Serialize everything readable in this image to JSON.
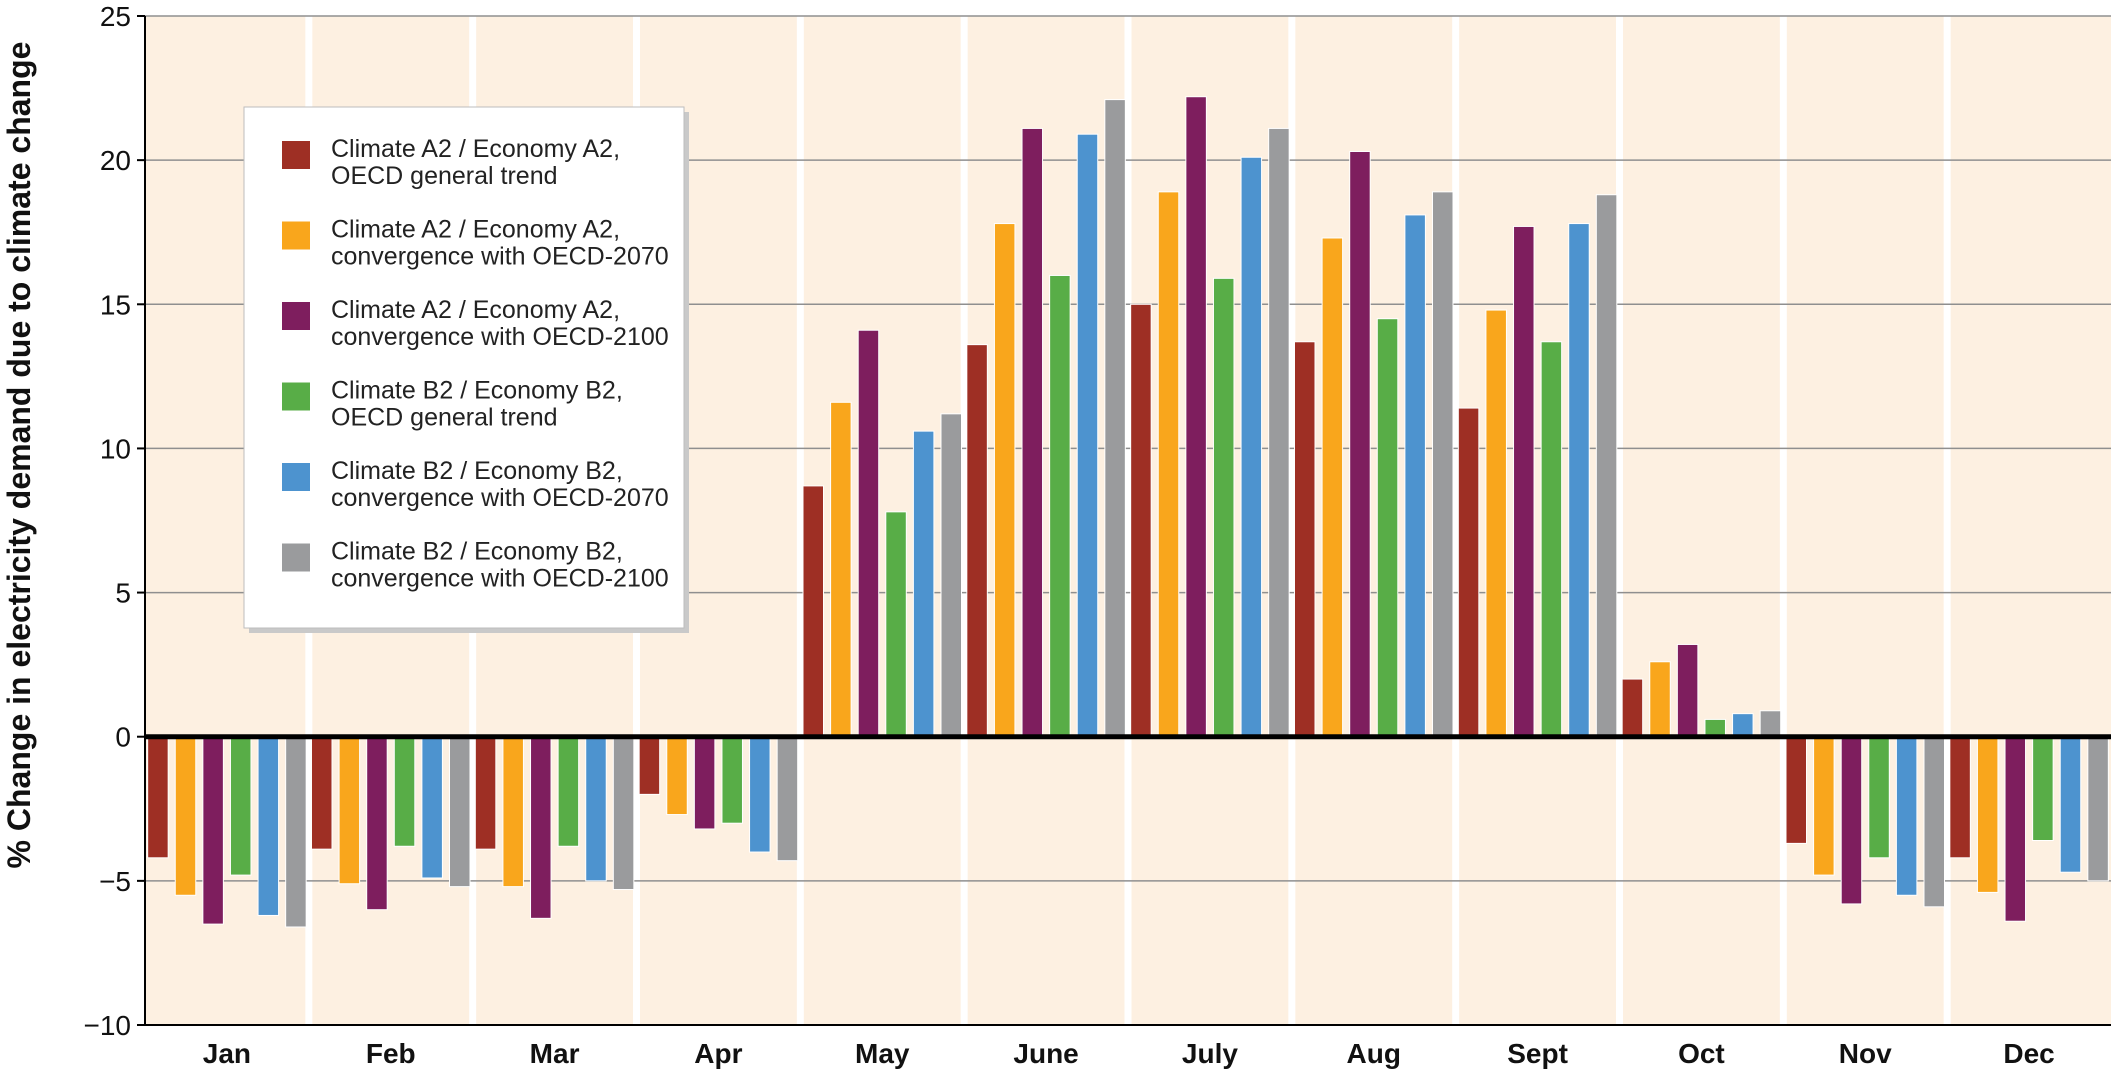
{
  "chart_data": {
    "type": "bar",
    "title": "",
    "xlabel": "",
    "ylabel": "% Change in electricity demand due to climate change",
    "ylim": [
      -10,
      25
    ],
    "yticks": [
      -10,
      -5,
      0,
      5,
      10,
      15,
      20,
      25
    ],
    "yticklabels": [
      "−10",
      "−5",
      "0",
      "5",
      "10",
      "15",
      "20",
      "25"
    ],
    "grid": true,
    "legend_position": "top-left",
    "categories": [
      "Jan",
      "Feb",
      "Mar",
      "Apr",
      "May",
      "June",
      "July",
      "Aug",
      "Sept",
      "Oct",
      "Nov",
      "Dec"
    ],
    "series": [
      {
        "name": "Climate A2 / Economy A2, OECD general trend",
        "legend_lines": [
          "Climate A2 / Economy A2,",
          "OECD general trend"
        ],
        "color": "#9e2f24",
        "values": [
          -4.2,
          -3.9,
          -3.9,
          -2.0,
          8.7,
          13.6,
          15.0,
          13.7,
          11.4,
          2.0,
          -3.7,
          -4.2
        ]
      },
      {
        "name": "Climate A2 / Economy A2, convergence with OECD-2070",
        "legend_lines": [
          "Climate A2 / Economy A2,",
          "convergence with OECD-2070"
        ],
        "color": "#f9a61c",
        "values": [
          -5.5,
          -5.1,
          -5.2,
          -2.7,
          11.6,
          17.8,
          18.9,
          17.3,
          14.8,
          2.6,
          -4.8,
          -5.4
        ]
      },
      {
        "name": "Climate A2 / Economy A2, convergence with OECD-2100",
        "legend_lines": [
          "Climate A2 / Economy A2,",
          "convergence with OECD-2100"
        ],
        "color": "#7e1e5e",
        "values": [
          -6.5,
          -6.0,
          -6.3,
          -3.2,
          14.1,
          21.1,
          22.2,
          20.3,
          17.7,
          3.2,
          -5.8,
          -6.4
        ]
      },
      {
        "name": "Climate B2 / Economy B2, OECD general trend",
        "legend_lines": [
          "Climate B2 / Economy B2,",
          "OECD general trend"
        ],
        "color": "#58ad47",
        "values": [
          -4.8,
          -3.8,
          -3.8,
          -3.0,
          7.8,
          16.0,
          15.9,
          14.5,
          13.7,
          0.6,
          -4.2,
          -3.6
        ]
      },
      {
        "name": "Climate B2 / Economy B2, convergence with OECD-2070",
        "legend_lines": [
          "Climate B2 / Economy B2,",
          "convergence with OECD-2070"
        ],
        "color": "#4d93cf",
        "values": [
          -6.2,
          -4.9,
          -5.0,
          -4.0,
          10.6,
          20.9,
          20.1,
          18.1,
          17.8,
          0.8,
          -5.5,
          -4.7
        ]
      },
      {
        "name": "Climate B2 / Economy B2, convergence with OECD-2100",
        "legend_lines": [
          "Climate B2 / Economy B2,",
          "convergence with OECD-2100"
        ],
        "color": "#9a9b9d",
        "values": [
          -6.6,
          -5.2,
          -5.3,
          -4.3,
          11.2,
          22.1,
          21.1,
          18.9,
          18.8,
          0.9,
          -5.9,
          -5.0
        ]
      }
    ]
  }
}
